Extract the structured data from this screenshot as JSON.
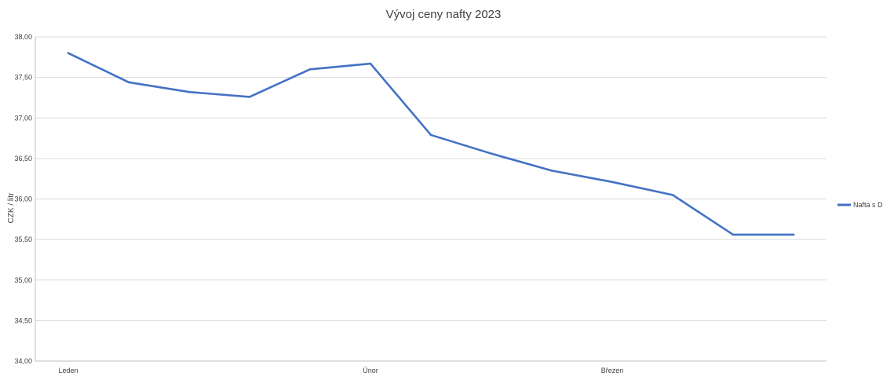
{
  "chart_data": {
    "type": "line",
    "title": "Vývoj ceny nafty 2023",
    "xlabel": "",
    "ylabel": "CZK / litr",
    "ylim": [
      34,
      38
    ],
    "yticks": [
      34,
      34.5,
      35,
      35.5,
      36,
      36.5,
      37,
      37.5,
      38
    ],
    "ytick_labels": [
      "34,00",
      "34,50",
      "35,00",
      "35,50",
      "36,00",
      "36,50",
      "37,00",
      "37,50",
      "38,00"
    ],
    "x": [
      1,
      2,
      3,
      4,
      5,
      6,
      7,
      8,
      9,
      10,
      11,
      12,
      13
    ],
    "xtick_labels": [
      {
        "x": 1,
        "label": "Leden"
      },
      {
        "x": 6,
        "label": "Únor"
      },
      {
        "x": 10,
        "label": "Březen"
      }
    ],
    "grid": true,
    "legend_position": "right",
    "series": [
      {
        "name": "Nafta s DPH",
        "color": "#4472c4",
        "values": [
          37.8,
          37.44,
          37.32,
          37.26,
          37.6,
          37.67,
          36.79,
          36.56,
          36.35,
          36.21,
          36.05,
          35.56,
          35.56
        ]
      }
    ]
  }
}
